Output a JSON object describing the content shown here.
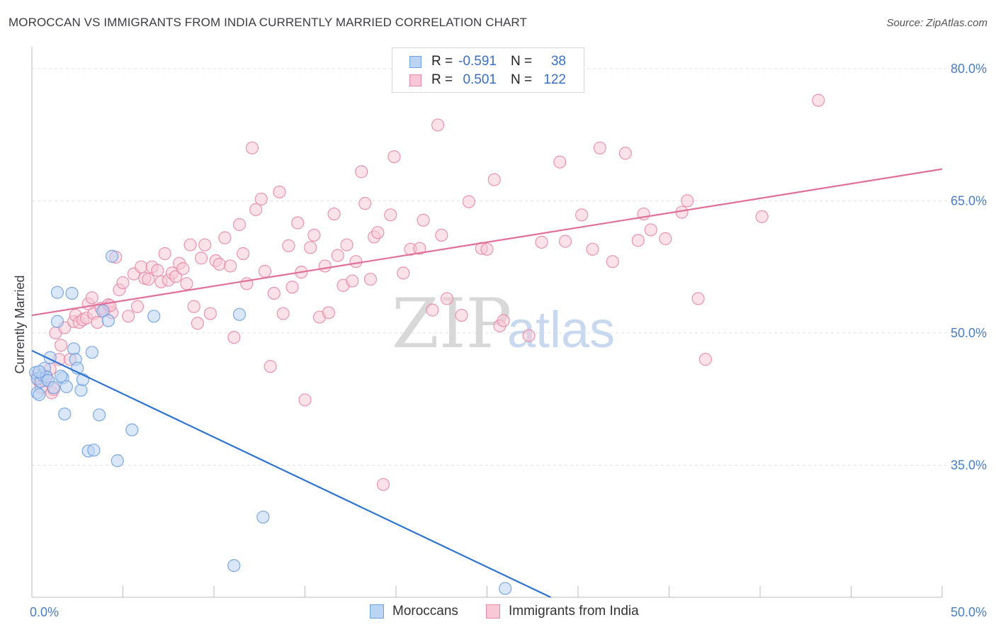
{
  "title": "MOROCCAN VS IMMIGRANTS FROM INDIA CURRENTLY MARRIED CORRELATION CHART",
  "source": "Source: ZipAtlas.com",
  "watermark": {
    "zip": "ZIP",
    "atlas": "atlas"
  },
  "legend": {
    "rows": [
      {
        "r_label": "R =",
        "r_value": "-0.591",
        "n_label": "N =",
        "n_value": "38",
        "color": "#6fa0e0",
        "fill": "#bcd4f4"
      },
      {
        "r_label": "R =",
        "r_value": "0.501",
        "n_label": "N =",
        "n_value": "122",
        "color": "#e88aa6",
        "fill": "#f8c8d6"
      }
    ]
  },
  "bottom_legend": [
    {
      "label": "Moroccans",
      "color": "#6fa0e0",
      "fill": "#bcd4f4"
    },
    {
      "label": "Immigrants from India",
      "color": "#e88aa6",
      "fill": "#f8c8d6"
    }
  ],
  "chart_data": {
    "type": "scatter",
    "title": "MOROCCAN VS IMMIGRANTS FROM INDIA CURRENTLY MARRIED CORRELATION CHART",
    "xlabel": "",
    "ylabel": "Currently Married",
    "xlim": [
      0,
      50
    ],
    "ylim": [
      20,
      82
    ],
    "x_tick_labels": [
      "0.0%",
      "50.0%"
    ],
    "y_ticks": [
      35,
      50,
      65,
      80
    ],
    "y_tick_labels": [
      "35.0%",
      "50.0%",
      "65.0%",
      "80.0%"
    ],
    "grid": true,
    "series": [
      {
        "name": "Moroccans",
        "color": "#6fa0e0",
        "fill": "#bcd4f4",
        "trend": {
          "x": [
            0,
            28.5
          ],
          "y": [
            48.0,
            20.0
          ]
        },
        "points": [
          [
            0.2,
            45.5
          ],
          [
            0.3,
            44.8
          ],
          [
            0.3,
            43.2
          ],
          [
            0.4,
            43.0
          ],
          [
            0.5,
            44.5
          ],
          [
            0.6,
            45.2
          ],
          [
            0.7,
            46.0
          ],
          [
            0.8,
            45.0
          ],
          [
            0.9,
            44.6
          ],
          [
            1.0,
            47.2
          ],
          [
            1.2,
            43.8
          ],
          [
            1.4,
            51.3
          ],
          [
            1.4,
            54.6
          ],
          [
            1.7,
            44.9
          ],
          [
            1.8,
            40.8
          ],
          [
            1.9,
            43.9
          ],
          [
            2.2,
            54.5
          ],
          [
            2.3,
            48.2
          ],
          [
            2.4,
            47.0
          ],
          [
            2.5,
            46.0
          ],
          [
            2.7,
            43.5
          ],
          [
            2.8,
            44.7
          ],
          [
            3.1,
            36.6
          ],
          [
            3.3,
            47.8
          ],
          [
            3.4,
            36.7
          ],
          [
            3.7,
            40.7
          ],
          [
            3.9,
            52.5
          ],
          [
            4.2,
            51.4
          ],
          [
            4.4,
            58.7
          ],
          [
            4.7,
            35.5
          ],
          [
            5.5,
            39.0
          ],
          [
            6.7,
            51.9
          ],
          [
            11.1,
            23.6
          ],
          [
            11.4,
            52.1
          ],
          [
            12.7,
            29.1
          ],
          [
            26.0,
            21.0
          ],
          [
            0.4,
            45.6
          ],
          [
            1.6,
            45.1
          ]
        ]
      },
      {
        "name": "Immigrants from India",
        "color": "#e88aa6",
        "fill": "#f8c8d6",
        "trend": {
          "x": [
            0,
            50
          ],
          "y": [
            52.0,
            68.6
          ]
        },
        "points": [
          [
            0.3,
            45.2
          ],
          [
            0.4,
            44.5
          ],
          [
            0.5,
            43.8
          ],
          [
            0.7,
            44.6
          ],
          [
            0.8,
            45.1
          ],
          [
            1.0,
            45.9
          ],
          [
            1.1,
            43.2
          ],
          [
            1.2,
            43.6
          ],
          [
            1.3,
            50.0
          ],
          [
            1.5,
            47.0
          ],
          [
            1.6,
            48.6
          ],
          [
            1.8,
            50.6
          ],
          [
            2.1,
            47.0
          ],
          [
            2.3,
            51.3
          ],
          [
            2.4,
            52.0
          ],
          [
            2.6,
            51.2
          ],
          [
            2.8,
            51.5
          ],
          [
            3.0,
            51.7
          ],
          [
            3.1,
            53.3
          ],
          [
            3.3,
            54.0
          ],
          [
            3.4,
            52.2
          ],
          [
            3.6,
            51.2
          ],
          [
            3.8,
            52.8
          ],
          [
            4.0,
            52.6
          ],
          [
            4.2,
            53.2
          ],
          [
            4.4,
            52.3
          ],
          [
            4.6,
            58.6
          ],
          [
            4.8,
            54.9
          ],
          [
            5.0,
            55.7
          ],
          [
            5.3,
            51.9
          ],
          [
            5.6,
            56.7
          ],
          [
            5.8,
            53.0
          ],
          [
            6.0,
            57.5
          ],
          [
            6.2,
            56.2
          ],
          [
            6.4,
            56.1
          ],
          [
            6.6,
            57.5
          ],
          [
            6.9,
            57.1
          ],
          [
            7.1,
            55.8
          ],
          [
            7.3,
            59.0
          ],
          [
            7.5,
            56.0
          ],
          [
            7.7,
            56.8
          ],
          [
            7.9,
            56.4
          ],
          [
            8.1,
            57.9
          ],
          [
            8.3,
            57.3
          ],
          [
            8.5,
            55.6
          ],
          [
            8.7,
            60.0
          ],
          [
            8.9,
            53.0
          ],
          [
            9.1,
            51.1
          ],
          [
            9.3,
            58.5
          ],
          [
            9.5,
            60.0
          ],
          [
            9.8,
            52.2
          ],
          [
            10.1,
            58.2
          ],
          [
            10.3,
            57.8
          ],
          [
            10.6,
            60.8
          ],
          [
            10.9,
            57.6
          ],
          [
            11.1,
            49.5
          ],
          [
            11.4,
            62.3
          ],
          [
            11.6,
            59.0
          ],
          [
            11.8,
            55.6
          ],
          [
            12.1,
            71.0
          ],
          [
            12.3,
            64.0
          ],
          [
            12.6,
            65.2
          ],
          [
            12.8,
            57.0
          ],
          [
            13.1,
            46.2
          ],
          [
            13.3,
            54.5
          ],
          [
            13.6,
            66.0
          ],
          [
            13.8,
            52.2
          ],
          [
            14.1,
            59.9
          ],
          [
            14.3,
            55.2
          ],
          [
            14.6,
            62.5
          ],
          [
            14.8,
            56.9
          ],
          [
            15.0,
            42.4
          ],
          [
            15.3,
            59.7
          ],
          [
            15.5,
            61.1
          ],
          [
            15.8,
            51.8
          ],
          [
            16.1,
            57.6
          ],
          [
            16.3,
            52.3
          ],
          [
            16.6,
            63.5
          ],
          [
            16.8,
            58.8
          ],
          [
            17.1,
            55.4
          ],
          [
            17.3,
            60.0
          ],
          [
            17.6,
            55.9
          ],
          [
            17.8,
            58.1
          ],
          [
            18.1,
            68.3
          ],
          [
            18.3,
            64.7
          ],
          [
            18.6,
            56.1
          ],
          [
            18.8,
            60.9
          ],
          [
            19.0,
            61.4
          ],
          [
            19.3,
            32.8
          ],
          [
            19.7,
            63.4
          ],
          [
            19.9,
            70.0
          ],
          [
            20.4,
            56.8
          ],
          [
            20.8,
            59.5
          ],
          [
            21.3,
            59.6
          ],
          [
            21.5,
            62.8
          ],
          [
            22.0,
            52.6
          ],
          [
            22.3,
            73.6
          ],
          [
            22.5,
            61.1
          ],
          [
            22.8,
            53.9
          ],
          [
            23.6,
            52.0
          ],
          [
            24.0,
            64.9
          ],
          [
            24.7,
            59.6
          ],
          [
            25.0,
            59.5
          ],
          [
            25.4,
            67.4
          ],
          [
            25.7,
            50.8
          ],
          [
            25.9,
            51.4
          ],
          [
            27.3,
            49.7
          ],
          [
            28.0,
            60.3
          ],
          [
            29.0,
            69.4
          ],
          [
            29.3,
            60.4
          ],
          [
            30.2,
            63.4
          ],
          [
            30.8,
            59.5
          ],
          [
            31.2,
            71.0
          ],
          [
            31.9,
            58.1
          ],
          [
            32.6,
            70.4
          ],
          [
            33.3,
            60.5
          ],
          [
            33.6,
            63.5
          ],
          [
            34.0,
            61.7
          ],
          [
            34.8,
            60.7
          ],
          [
            35.7,
            63.7
          ],
          [
            36.0,
            65.0
          ],
          [
            36.6,
            53.9
          ],
          [
            37.0,
            47.0
          ],
          [
            40.1,
            63.2
          ],
          [
            43.2,
            76.4
          ],
          [
            4.3,
            53.1
          ]
        ]
      }
    ]
  }
}
